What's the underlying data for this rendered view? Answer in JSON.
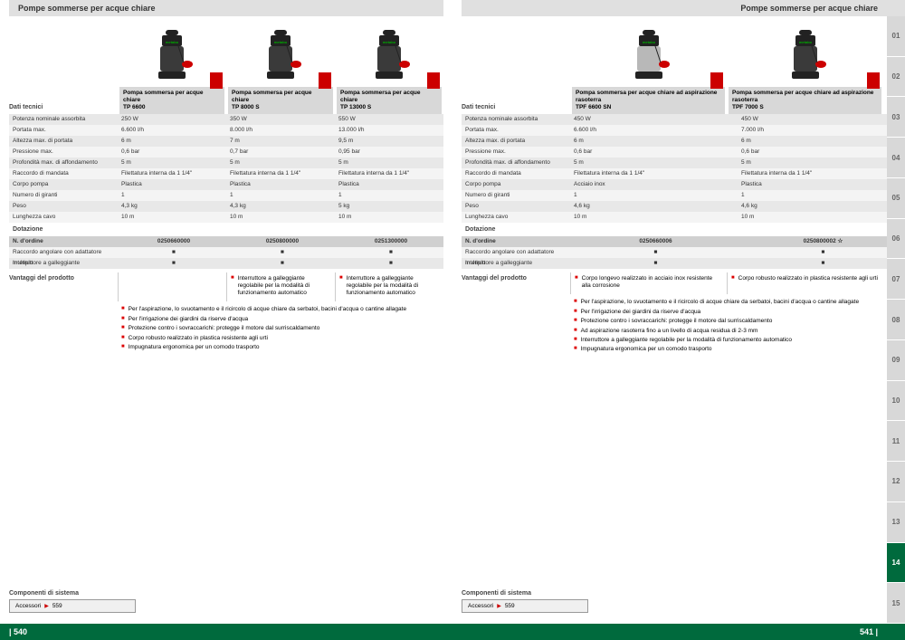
{
  "header_title": "Pompe sommerse per acque chiare",
  "section_tech": "Dati tecnici",
  "section_dotazione": "Dotazione",
  "section_vantaggi": "Vantaggi del prodotto",
  "section_componenti": "Componenti di sistema",
  "spec_rows": [
    "Potenza nominale assorbita",
    "Portata max.",
    "Altezza max. di portata",
    "Pressione max.",
    "Profondità max. di affondamento",
    "Raccordo di mandata",
    "Corpo pompa",
    "Numero di giranti",
    "Peso",
    "Lunghezza cavo"
  ],
  "order_label": "N. d'ordine",
  "dotazione_rows": [
    "Raccordo angolare con adattatore multiplo",
    "Interruttore a galleggiante"
  ],
  "left": {
    "products": [
      {
        "name": "Pompa sommersa per acque chiare",
        "model": "TP 6600",
        "order": "0250660000",
        "specs": [
          "250 W",
          "6.600 l/h",
          "6 m",
          "0,6 bar",
          "5 m",
          "Filettatura interna da 1 1/4\"",
          "Plastica",
          "1",
          "4,3 kg",
          "10 m"
        ]
      },
      {
        "name": "Pompa sommersa per acque chiare",
        "model": "TP 8000 S",
        "order": "0250800000",
        "specs": [
          "350 W",
          "8.000 l/h",
          "7 m",
          "0,7 bar",
          "5 m",
          "Filettatura interna da 1 1/4\"",
          "Plastica",
          "1",
          "4,3 kg",
          "10 m"
        ]
      },
      {
        "name": "Pompa sommersa per acque chiare",
        "model": "TP 13000 S",
        "order": "0251300000",
        "specs": [
          "550 W",
          "13.000 l/h",
          "9,5 m",
          "0,95 bar",
          "5 m",
          "Filettatura interna da 1 1/4\"",
          "Plastica",
          "1",
          "5 kg",
          "10 m"
        ]
      }
    ],
    "col_benefits": [
      [],
      [
        "Interruttore a galleggiante regolabile per la modalità di funzionamento automatico"
      ],
      [
        "Interruttore a galleggiante regolabile per la modalità di funzionamento automatico"
      ]
    ],
    "common_benefits": [
      "Per l'aspirazione, lo svuotamento e il ricircolo di acque chiare da serbatoi, bacini d'acqua o cantine allagate",
      "Per l'irrigazione dei giardini da riserve d'acqua",
      "Protezione contro i sovraccarichi: protegge il motore dal surriscaldamento",
      "Corpo robusto realizzato in plastica resistente agli urti",
      "Impugnatura ergonomica per un comodo trasporto"
    ],
    "accessori_label": "Accessori",
    "accessori_page": "559",
    "footer": "| 540"
  },
  "right": {
    "products": [
      {
        "name": "Pompa sommersa per acque chiare ad aspirazione rasoterra",
        "model": "TPF 6600 SN",
        "order": "0250660006",
        "specs": [
          "450 W",
          "6.600 l/h",
          "6 m",
          "0,6 bar",
          "5 m",
          "Filettatura interna da 1 1/4\"",
          "Acciaio inox",
          "1",
          "4,6 kg",
          "10 m"
        ]
      },
      {
        "name": "Pompa sommersa per acque chiare ad aspirazione rasoterra",
        "model": "TPF 7000 S",
        "order": "0250800002 ☆",
        "specs": [
          "450 W",
          "7.000 l/h",
          "6 m",
          "0,6 bar",
          "5 m",
          "Filettatura interna da 1 1/4\"",
          "Plastica",
          "1",
          "4,6 kg",
          "10 m"
        ]
      }
    ],
    "col_benefits": [
      [
        "Corpo longevo realizzato in acciaio inox resistente alla corrosione"
      ],
      [
        "Corpo robusto realizzato in plastica resistente agli urti"
      ]
    ],
    "common_benefits": [
      "Per l'aspirazione, lo svuotamento e il ricircolo di acque chiare da serbatoi, bacini d'acqua o cantine allagate",
      "Per l'irrigazione dei giardini da riserve d'acqua",
      "Protezione contro i sovraccarichi: protegge il motore dal surriscaldamento",
      "Ad aspirazione rasoterra fino a un livello di acqua residua di 2-3 mm",
      "Interruttore a galleggiante regolabile per la modalità di funzionamento automatico",
      "Impugnatura ergonomica per un comodo trasporto"
    ],
    "accessori_label": "Accessori",
    "accessori_page": "559",
    "footer": "541 |"
  },
  "tabs": [
    "01",
    "02",
    "03",
    "04",
    "05",
    "06",
    "07",
    "08",
    "09",
    "10",
    "11",
    "12",
    "13",
    "14",
    "15"
  ],
  "active_tab": "14",
  "colors": {
    "brand_green": "#006a3d",
    "badge_red": "#c00",
    "bullet_red": "#d00"
  }
}
